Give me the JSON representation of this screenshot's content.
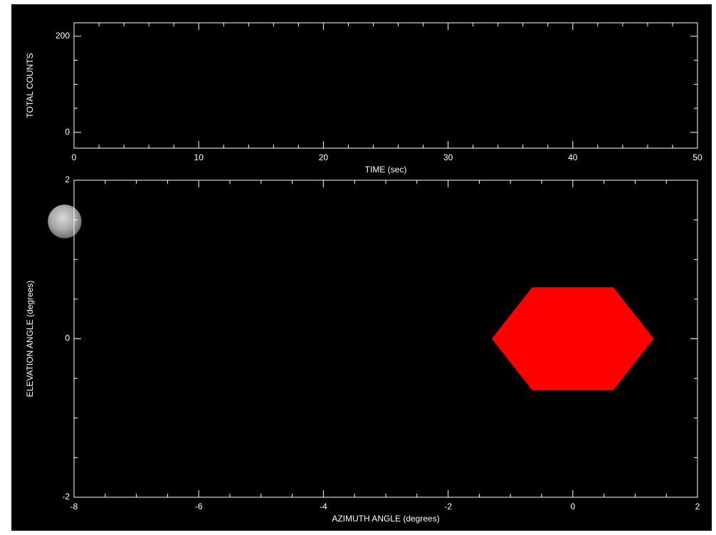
{
  "chart_data": [
    {
      "type": "line",
      "ylabel": "TOTAL COUNTS",
      "xlabel": "TIME (sec)",
      "xlim": [
        0,
        50
      ],
      "xticks": [
        0,
        10,
        20,
        30,
        40,
        50
      ],
      "xminor": 5,
      "ylim": [
        -33,
        228
      ],
      "yticks": [
        0,
        200
      ],
      "yminor": 4,
      "series": []
    },
    {
      "type": "polygon",
      "ylabel": "ELEVATION ANGLE (degrees)",
      "xlabel": "AZIMUTH ANGLE (degrees)",
      "xlim": [
        -8,
        2
      ],
      "xticks": [
        -8,
        -6,
        -4,
        -2,
        0,
        2
      ],
      "xminor": 4,
      "ylim": [
        -2,
        2
      ],
      "yticks": [
        -2,
        0,
        2
      ],
      "yminor": 4,
      "shape": {
        "color": "#ff0000",
        "x": [
          -1.3,
          -0.65,
          0.65,
          1.3,
          0.65,
          -0.65
        ],
        "y": [
          0,
          0.65,
          0.65,
          0,
          -0.65,
          -0.65
        ]
      },
      "moon": {
        "x": -8.15,
        "y": 1.48,
        "radius": 0.27
      }
    }
  ]
}
